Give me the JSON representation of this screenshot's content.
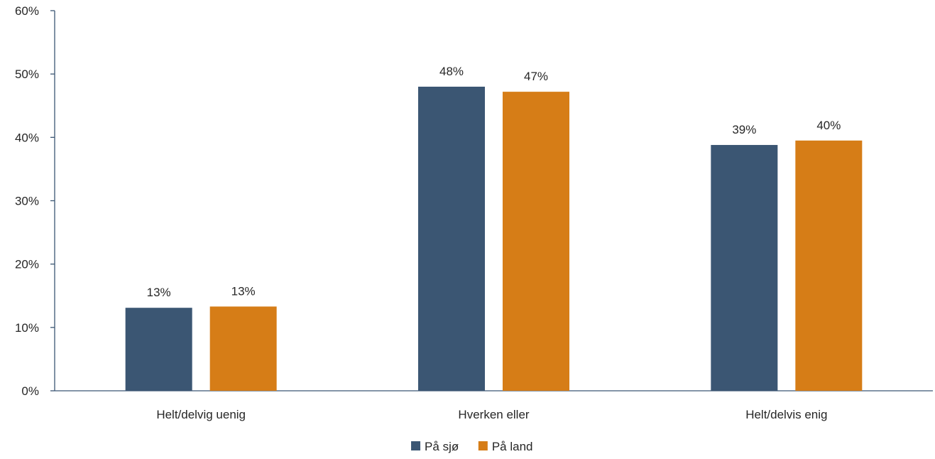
{
  "chart_data": {
    "type": "bar",
    "categories": [
      "Helt/delvig uenig",
      "Hverken eller",
      "Helt/delvis enig"
    ],
    "series": [
      {
        "name": "På sjø",
        "values": [
          13,
          48,
          39
        ],
        "labels": [
          "13%",
          "48%",
          "39%"
        ],
        "color": "#3b5673"
      },
      {
        "name": "På land",
        "values": [
          13,
          47,
          40
        ],
        "labels": [
          "13%",
          "47%",
          "40%"
        ],
        "color": "#d67d17"
      }
    ],
    "value_precision_actual": [
      [
        13.1,
        48.0,
        38.8
      ],
      [
        13.3,
        47.2,
        39.5
      ]
    ],
    "ylim": [
      0,
      60
    ],
    "yticks": [
      0,
      10,
      20,
      30,
      40,
      50,
      60
    ],
    "ytick_labels": [
      "0%",
      "10%",
      "20%",
      "30%",
      "40%",
      "50%",
      "60%"
    ],
    "legend_position": "bottom-center",
    "grid": false,
    "axis_color": "#3b5673"
  }
}
